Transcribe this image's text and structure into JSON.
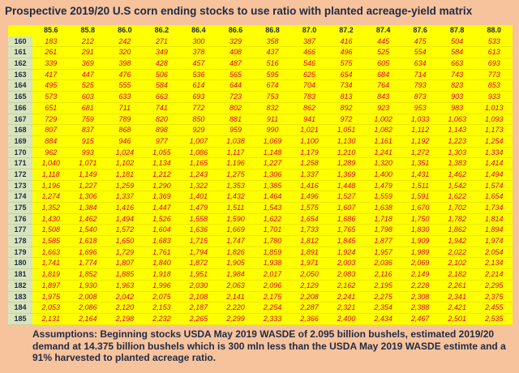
{
  "title": "Prospective 2019/20 U.S corn ending stocks to use ratio with planted acreage-yield matrix",
  "table": {
    "columns": [
      "85.6",
      "85.8",
      "86.0",
      "86.2",
      "86.4",
      "86.6",
      "86.8",
      "87.0",
      "87.2",
      "87.4",
      "87.6",
      "87.8",
      "88.0"
    ],
    "rows": [
      [
        "160",
        "183",
        "212",
        "242",
        "271",
        "300",
        "329",
        "358",
        "387",
        "416",
        "445",
        "475",
        "504",
        "533"
      ],
      [
        "161",
        "261",
        "291",
        "320",
        "349",
        "378",
        "408",
        "437",
        "466",
        "496",
        "525",
        "554",
        "584",
        "613"
      ],
      [
        "162",
        "339",
        "369",
        "398",
        "428",
        "457",
        "487",
        "516",
        "546",
        "575",
        "605",
        "634",
        "663",
        "693"
      ],
      [
        "163",
        "417",
        "447",
        "476",
        "506",
        "536",
        "565",
        "595",
        "625",
        "654",
        "684",
        "714",
        "743",
        "773"
      ],
      [
        "164",
        "495",
        "525",
        "555",
        "584",
        "614",
        "644",
        "674",
        "704",
        "734",
        "764",
        "793",
        "823",
        "853"
      ],
      [
        "165",
        "573",
        "603",
        "633",
        "663",
        "693",
        "723",
        "753",
        "783",
        "813",
        "843",
        "873",
        "903",
        "933"
      ],
      [
        "166",
        "651",
        "681",
        "711",
        "741",
        "772",
        "802",
        "832",
        "862",
        "892",
        "923",
        "953",
        "983",
        "1,013"
      ],
      [
        "167",
        "729",
        "759",
        "789",
        "820",
        "850",
        "881",
        "911",
        "941",
        "972",
        "1,002",
        "1,033",
        "1,063",
        "1,093"
      ],
      [
        "168",
        "807",
        "837",
        "868",
        "898",
        "929",
        "959",
        "990",
        "1,021",
        "1,051",
        "1,082",
        "1,112",
        "1,143",
        "1,173"
      ],
      [
        "169",
        "884",
        "915",
        "946",
        "977",
        "1,007",
        "1,038",
        "1,069",
        "1,100",
        "1,130",
        "1,161",
        "1,192",
        "1,223",
        "1,254"
      ],
      [
        "170",
        "962",
        "993",
        "1,024",
        "1,055",
        "1,086",
        "1,117",
        "1,148",
        "1,179",
        "1,210",
        "1,241",
        "1,272",
        "1,303",
        "1,334"
      ],
      [
        "171",
        "1,040",
        "1,071",
        "1,102",
        "1,134",
        "1,165",
        "1,196",
        "1,227",
        "1,258",
        "1,289",
        "1,320",
        "1,351",
        "1,383",
        "1,414"
      ],
      [
        "172",
        "1,118",
        "1,149",
        "1,181",
        "1,212",
        "1,243",
        "1,275",
        "1,306",
        "1,337",
        "1,369",
        "1,400",
        "1,431",
        "1,462",
        "1,494"
      ],
      [
        "173",
        "1,196",
        "1,227",
        "1,259",
        "1,290",
        "1,322",
        "1,353",
        "1,385",
        "1,416",
        "1,448",
        "1,479",
        "1,511",
        "1,542",
        "1,574"
      ],
      [
        "174",
        "1,274",
        "1,306",
        "1,337",
        "1,369",
        "1,401",
        "1,432",
        "1,464",
        "1,496",
        "1,527",
        "1,559",
        "1,591",
        "1,622",
        "1,654"
      ],
      [
        "175",
        "1,352",
        "1,384",
        "1,416",
        "1,447",
        "1,479",
        "1,511",
        "1,543",
        "1,575",
        "1,607",
        "1,638",
        "1,670",
        "1,702",
        "1,734"
      ],
      [
        "176",
        "1,430",
        "1,462",
        "1,494",
        "1,526",
        "1,558",
        "1,590",
        "1,622",
        "1,654",
        "1,686",
        "1,718",
        "1,750",
        "1,782",
        "1,814"
      ],
      [
        "177",
        "1,508",
        "1,540",
        "1,572",
        "1,604",
        "1,636",
        "1,669",
        "1,701",
        "1,733",
        "1,765",
        "1,798",
        "1,830",
        "1,862",
        "1,894"
      ],
      [
        "178",
        "1,585",
        "1,618",
        "1,650",
        "1,683",
        "1,715",
        "1,747",
        "1,780",
        "1,812",
        "1,845",
        "1,877",
        "1,909",
        "1,942",
        "1,974"
      ],
      [
        "179",
        "1,663",
        "1,696",
        "1,729",
        "1,761",
        "1,794",
        "1,826",
        "1,859",
        "1,891",
        "1,924",
        "1,957",
        "1,989",
        "2,022",
        "2,054"
      ],
      [
        "180",
        "1,741",
        "1,774",
        "1,807",
        "1,840",
        "1,872",
        "1,905",
        "1,938",
        "1,971",
        "2,003",
        "2,036",
        "2,069",
        "2,102",
        "2,134"
      ],
      [
        "181",
        "1,819",
        "1,852",
        "1,885",
        "1,918",
        "1,951",
        "1,984",
        "2,017",
        "2,050",
        "2,083",
        "2,116",
        "2,149",
        "2,182",
        "2,214"
      ],
      [
        "182",
        "1,897",
        "1,930",
        "1,963",
        "1,996",
        "2,030",
        "2,063",
        "2,096",
        "2,129",
        "2,162",
        "2,195",
        "2,228",
        "2,261",
        "2,295"
      ],
      [
        "183",
        "1,975",
        "2,008",
        "2,042",
        "2,075",
        "2,108",
        "2,141",
        "2,175",
        "2,208",
        "2,241",
        "2,275",
        "2,308",
        "2,341",
        "2,375"
      ],
      [
        "184",
        "2,053",
        "2,086",
        "2,120",
        "2,153",
        "2,187",
        "2,220",
        "2,254",
        "2,287",
        "2,321",
        "2,354",
        "2,388",
        "2,421",
        "2,455"
      ],
      [
        "185",
        "2,131",
        "2,164",
        "2,198",
        "2,232",
        "2,265",
        "2,299",
        "2,333",
        "2,366",
        "2,400",
        "2,434",
        "2,467",
        "2,501",
        "2,535"
      ]
    ]
  },
  "note": "Assumptions:  Beginning stocks  USDA May 2019  WASDE of 2.095 billion bushels,  estimated 2019/20 demand at 14.375 billion bushels which is 300 mln less than the USDA May 2019 WASDE estimte and a 91% harvested to planted acreage ratio."
}
